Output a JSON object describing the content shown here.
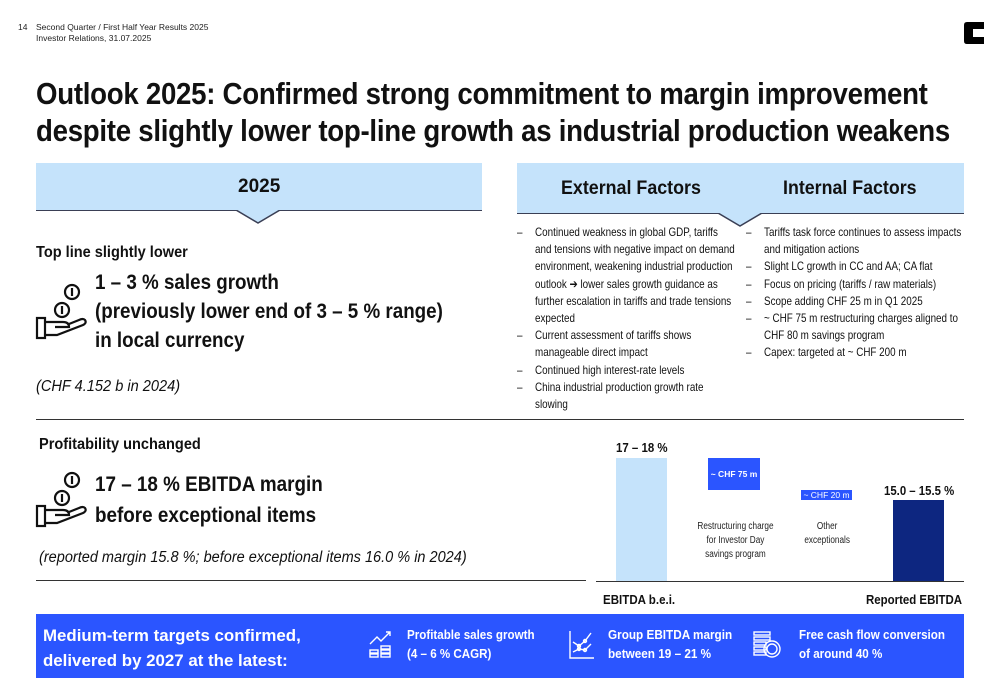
{
  "header": {
    "page_number": "14",
    "line1": "Second Quarter / First Half Year Results 2025",
    "line2": "Investor Relations, 31.07.2025"
  },
  "title": {
    "line1": "Outlook 2025: Confirmed strong commitment to margin improvement",
    "line2": "despite slightly lower top-line growth as industrial production weakens"
  },
  "left": {
    "band_title": "2025",
    "topline": {
      "heading": "Top line slightly lower",
      "big": [
        "1 – 3 % sales growth",
        "(previously lower end of 3 – 5 % range)",
        "in local currency"
      ],
      "note": "(CHF 4.152 b in 2024)"
    },
    "profit": {
      "heading": "Profitability unchanged",
      "big": [
        "17 – 18 % EBITDA margin",
        "before exceptional items"
      ],
      "note": "(reported margin 15.8 %; before exceptional items 16.0 % in 2024)"
    }
  },
  "right": {
    "external_title": "External Factors",
    "internal_title": "Internal Factors",
    "external": [
      "Continued weakness in global GDP, tariffs and tensions with negative impact on demand environment, weakening industrial production outlook ➔ lower sales growth guidance as further escalation in tariffs and trade tensions expected",
      "Current assessment of tariffs shows manageable direct impact",
      "Continued high interest-rate levels",
      "China industrial production growth rate slowing"
    ],
    "internal": [
      "Tariffs task force continues to assess impacts and mitigation actions",
      "Slight LC growth in CC and AA; CA flat",
      "Focus on pricing (tariffs / raw materials)",
      "Scope adding CHF 25 m in Q1 2025",
      "~ CHF 75 m restructuring charges aligned to CHF 80 m savings program",
      "Capex: targeted at ~ CHF 200 m"
    ]
  },
  "bridge": {
    "start_value": "17 – 18 %",
    "start_label": "EBITDA b.e.i.",
    "step1_value": "~ CHF 75 m",
    "step1_label": "Restructuring charge for Investor Day savings program",
    "step2_value": "~ CHF 20 m",
    "step2_label": "Other exceptionals",
    "end_value": "15.0 – 15.5 %",
    "end_label": "Reported EBITDA",
    "colors": {
      "start": "#c5e3fb",
      "step": "#2b55ff",
      "end": "#0d2680"
    }
  },
  "footer": {
    "headline": [
      "Medium-term targets confirmed,",
      "delivered by 2027 at the latest:"
    ],
    "targets": [
      {
        "icon": "growth-coins-icon",
        "line1": "Profitable sales growth",
        "line2": "(4 – 6 % CAGR)"
      },
      {
        "icon": "line-chart-icon",
        "line1": "Group EBITDA margin",
        "line2": "between 19 – 21 %"
      },
      {
        "icon": "coin-stack-icon",
        "line1": "Free cash flow conversion",
        "line2": "of around 40 %"
      }
    ],
    "color": "#2b55ff"
  }
}
